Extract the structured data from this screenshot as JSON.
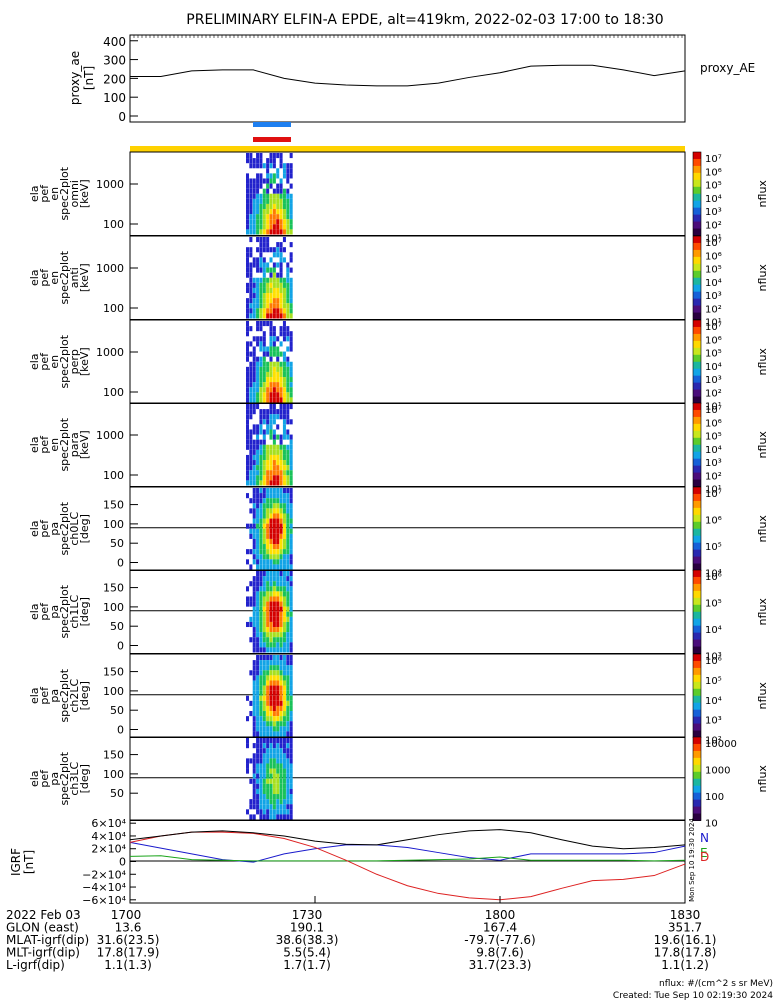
{
  "title": "PRELIMINARY ELFIN-A EPDE, alt=419km, 2022-02-03 17:00 to 18:30",
  "proxy_panel": {
    "ylabel_top": "proxy_ae",
    "ylabel_unit": "[nT]",
    "legend": "proxy_AE",
    "yticks": [
      "400",
      "300",
      "200",
      "100",
      "0"
    ]
  },
  "spec_panels": [
    {
      "label": [
        "ela",
        "pef",
        "en",
        "spec2plot",
        "omni",
        "[keV]"
      ],
      "yticks": [
        "1000",
        "100"
      ],
      "cbar_label": "nflux",
      "cbar_ticks": [
        "10⁷",
        "10⁶",
        "10⁵",
        "10⁴",
        "10³",
        "10²",
        "10¹"
      ]
    },
    {
      "label": [
        "ela",
        "pef",
        "en",
        "spec2plot",
        "anti",
        "[keV]"
      ],
      "yticks": [
        "1000",
        "100"
      ],
      "cbar_label": "nflux",
      "cbar_ticks": [
        "10⁷",
        "10⁶",
        "10⁵",
        "10⁴",
        "10³",
        "10²",
        "10¹"
      ]
    },
    {
      "label": [
        "ela",
        "pef",
        "en",
        "spec2plot",
        "perp",
        "[keV]"
      ],
      "yticks": [
        "1000",
        "100"
      ],
      "cbar_label": "nflux",
      "cbar_ticks": [
        "10⁷",
        "10⁶",
        "10⁵",
        "10⁴",
        "10³",
        "10²",
        "10¹"
      ]
    },
    {
      "label": [
        "ela",
        "pef",
        "en",
        "spec2plot",
        "para",
        "[keV]"
      ],
      "yticks": [
        "1000",
        "100"
      ],
      "cbar_label": "nflux",
      "cbar_ticks": [
        "10⁷",
        "10⁶",
        "10⁵",
        "10⁴",
        "10³",
        "10²",
        "10¹"
      ]
    },
    {
      "label": [
        "ela",
        "pef",
        "pa",
        "spec2plot",
        "ch0LC",
        "[deg]"
      ],
      "yticks": [
        "150",
        "100",
        "50",
        "0"
      ],
      "cbar_label": "nflux",
      "cbar_ticks": [
        "10⁷",
        "10⁶",
        "10⁵",
        "10⁴"
      ]
    },
    {
      "label": [
        "ela",
        "pef",
        "pa",
        "spec2plot",
        "ch1LC",
        "[deg]"
      ],
      "yticks": [
        "150",
        "100",
        "50",
        "0"
      ],
      "cbar_label": "nflux",
      "cbar_ticks": [
        "10⁶",
        "10⁵",
        "10⁴",
        "10³"
      ]
    },
    {
      "label": [
        "ela",
        "pef",
        "pa",
        "spec2plot",
        "ch2LC",
        "[deg]"
      ],
      "yticks": [
        "150",
        "100",
        "50",
        "0"
      ],
      "cbar_label": "nflux",
      "cbar_ticks": [
        "10⁶",
        "10⁵",
        "10⁴",
        "10³",
        "10²"
      ]
    },
    {
      "label": [
        "ela",
        "pef",
        "pa",
        "spec2plot",
        "ch3LC",
        "[deg]"
      ],
      "yticks": [
        "150",
        "100",
        "50"
      ],
      "cbar_label": "nflux",
      "cbar_ticks": [
        "10000",
        "1000",
        "100",
        "10"
      ]
    }
  ],
  "igrf_panel": {
    "ylabel": [
      "IGRF",
      "[nT]"
    ],
    "yticks": [
      "6×10⁴",
      "4×10⁴",
      "2×10⁴",
      "0",
      "−2×10⁴",
      "−4×10⁴",
      "−6×10⁴"
    ],
    "legend": [
      "N",
      "E",
      "D"
    ],
    "side_label": "Mon Sep 10 19:30 2024"
  },
  "footer": {
    "rows": [
      {
        "label": "2022 Feb 03",
        "values": [
          "1700",
          "1730",
          "1800",
          "1830"
        ]
      },
      {
        "label": "GLON (east)",
        "values": [
          "13.6",
          "190.1",
          "167.4",
          "351.7"
        ]
      },
      {
        "label": "MLAT-igrf(dip)",
        "values": [
          "31.6(23.5)",
          "38.6(38.3)",
          "-79.7(-77.6)",
          "19.6(16.1)"
        ]
      },
      {
        "label": "MLT-igrf(dip)",
        "values": [
          "17.8(17.9)",
          "5.5(5.4)",
          "9.8(7.6)",
          "17.8(17.8)"
        ]
      },
      {
        "label": "L-igrf(dip)",
        "values": [
          "1.1(1.3)",
          "1.7(1.7)",
          "31.7(23.3)",
          "1.1(1.2)"
        ]
      }
    ],
    "units_note": "nflux: #/(cm^2 s sr MeV)",
    "created": "Created: Tue Sep 10 02:19:30 2024"
  },
  "colors": {
    "fast_survey_bar": "#ffd200",
    "bar_blue": "#1e7ff0",
    "bar_red": "#e01010",
    "ae_line": "#000000",
    "igrf_n": "#1a1acc",
    "igrf_e": "#1aa41a",
    "igrf_d": "#dd2222",
    "igrf_total": "#000000"
  },
  "chart_data": [
    {
      "type": "line",
      "title": "proxy_AE",
      "x": [
        "17:00",
        "17:05",
        "17:10",
        "17:15",
        "17:20",
        "17:25",
        "17:30",
        "17:35",
        "17:40",
        "17:45",
        "17:50",
        "17:55",
        "18:00",
        "18:05",
        "18:10",
        "18:15",
        "18:20",
        "18:25",
        "18:30"
      ],
      "series": [
        {
          "name": "proxy_AE",
          "values": [
            210,
            210,
            240,
            245,
            245,
            200,
            175,
            165,
            160,
            160,
            175,
            205,
            230,
            265,
            270,
            270,
            245,
            215,
            240
          ]
        }
      ],
      "ylim": [
        0,
        420
      ]
    },
    {
      "type": "line",
      "title": "IGRF",
      "x": [
        "17:00",
        "17:05",
        "17:10",
        "17:15",
        "17:20",
        "17:25",
        "17:30",
        "17:35",
        "17:40",
        "17:45",
        "17:50",
        "17:55",
        "18:00",
        "18:05",
        "18:10",
        "18:15",
        "18:20",
        "18:25",
        "18:30"
      ],
      "series": [
        {
          "name": "N",
          "values": [
            30000,
            21000,
            12000,
            3000,
            -1000,
            12000,
            20000,
            26000,
            26000,
            22000,
            14000,
            6000,
            2000,
            12000,
            12000,
            12000,
            12000,
            14000,
            24000
          ]
        },
        {
          "name": "E",
          "values": [
            8000,
            9000,
            3000,
            2000,
            1000,
            1000,
            1000,
            1000,
            1000,
            2000,
            3000,
            4000,
            7000,
            2000,
            2000,
            2000,
            2000,
            1000,
            2000
          ]
        },
        {
          "name": "D",
          "values": [
            30000,
            40000,
            46000,
            46000,
            44000,
            36000,
            22000,
            2000,
            -20000,
            -38000,
            -50000,
            -57000,
            -60000,
            -55000,
            -42000,
            -30000,
            -28000,
            -22000,
            -4000
          ]
        },
        {
          "name": "",
          "values": [
            34000,
            40000,
            46000,
            48000,
            45000,
            40000,
            32000,
            27000,
            26000,
            34000,
            42000,
            48000,
            50000,
            45000,
            34000,
            24000,
            20000,
            22000,
            26000
          ]
        }
      ],
      "ylim": [
        -65000,
        65000
      ]
    }
  ]
}
